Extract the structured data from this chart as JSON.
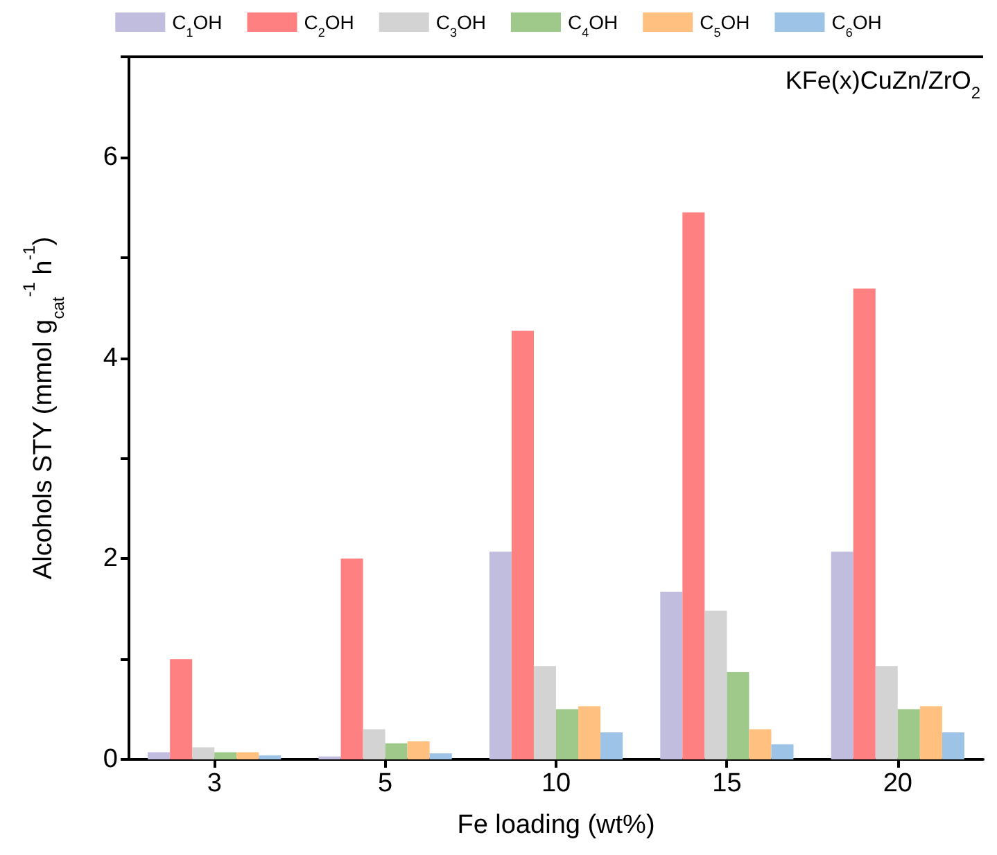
{
  "chart_data": {
    "type": "bar",
    "xlabel": "Fe loading (wt%)",
    "ylabel": "Alcohols STY (mmol g$_{cat}$$^{-1}$ h$^{-1}$)",
    "categories": [
      "3",
      "5",
      "10",
      "15",
      "20"
    ],
    "series": [
      {
        "name": "C$_{1}$OH",
        "color": "#c0bddf",
        "values": [
          0.07,
          0.03,
          2.07,
          1.67,
          2.07
        ]
      },
      {
        "name": "C$_{2}$OH",
        "color": "#ff8080",
        "values": [
          1.0,
          2.0,
          4.27,
          5.45,
          4.69
        ]
      },
      {
        "name": "C$_{3}$OH",
        "color": "#d3d3d3",
        "values": [
          0.12,
          0.3,
          0.93,
          1.48,
          0.93
        ]
      },
      {
        "name": "C$_{4}$OH",
        "color": "#9ec98b",
        "values": [
          0.07,
          0.16,
          0.5,
          0.87,
          0.5
        ]
      },
      {
        "name": "C$_{5}$OH",
        "color": "#ffc080",
        "values": [
          0.07,
          0.18,
          0.53,
          0.3,
          0.53
        ]
      },
      {
        "name": "C$_{6}$OH",
        "color": "#9dc3e6",
        "values": [
          0.04,
          0.06,
          0.27,
          0.15,
          0.27
        ]
      }
    ],
    "ylim": [
      0,
      7
    ],
    "yticks": [
      0,
      {
        "value": 1,
        "label": null
      },
      2,
      {
        "value": 3,
        "label": null
      },
      4,
      {
        "value": 5,
        "label": null
      },
      6,
      {
        "value": 7,
        "label": null
      }
    ],
    "annotations": [
      "KFe(x)CuZn/ZrO$_{2}$"
    ],
    "legend": "top",
    "grid": false
  }
}
